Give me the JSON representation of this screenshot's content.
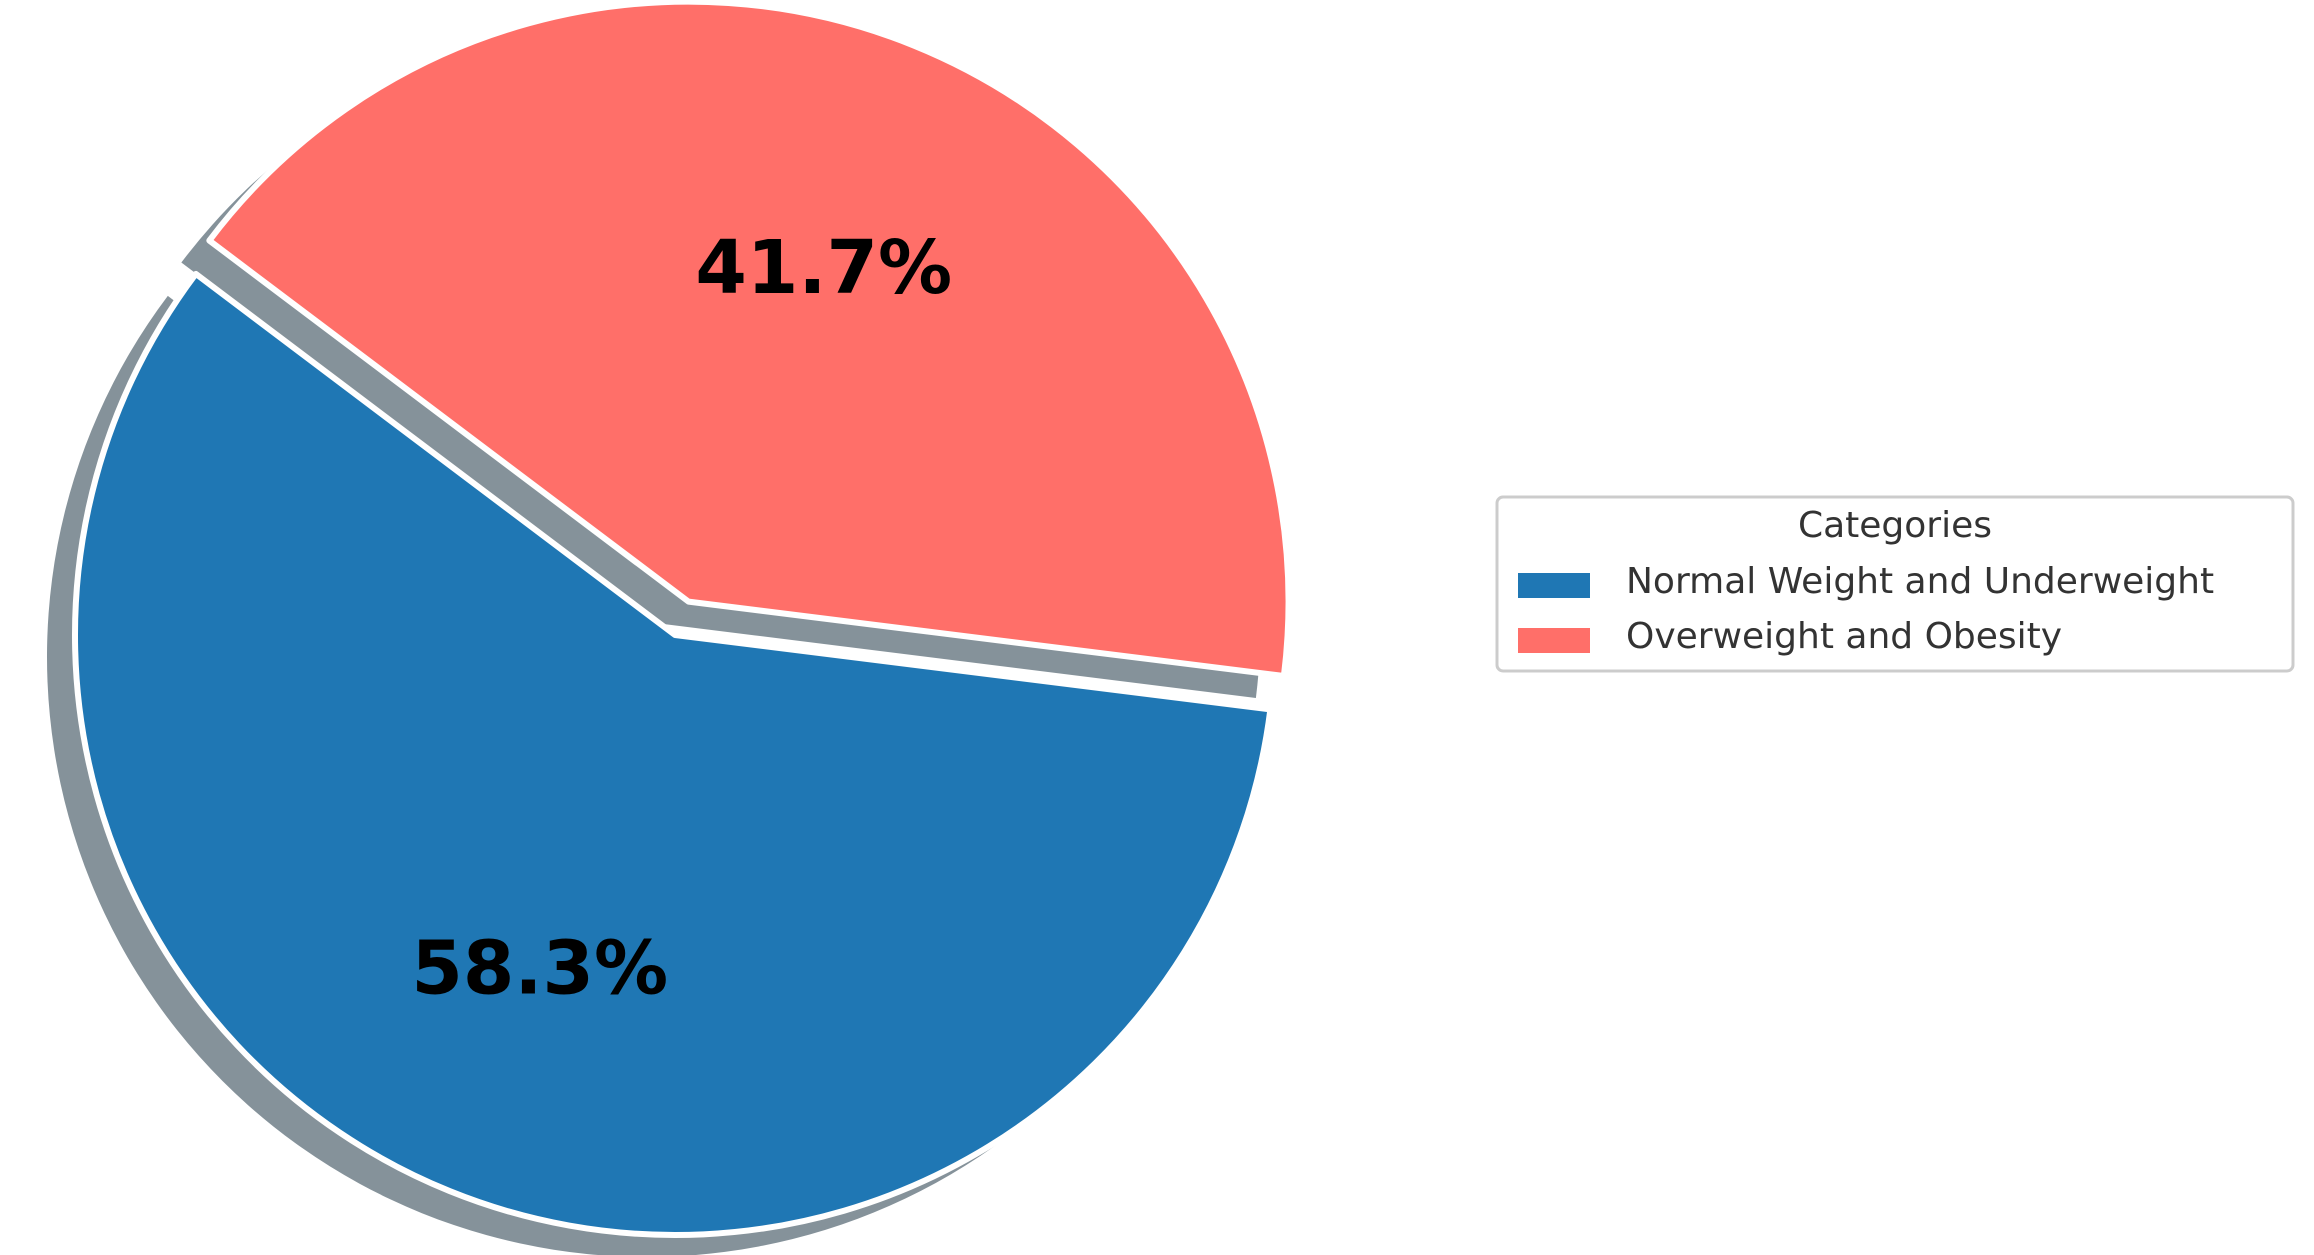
{
  "chart_data": {
    "type": "pie",
    "title": "",
    "start_angle_deg": 143,
    "direction": "counterclockwise",
    "shadow": true,
    "exploded": [
      "Overweight and Obesity"
    ],
    "slices": [
      {
        "label": "Normal Weight and Underweight",
        "value": 58.3,
        "display": "58.3%",
        "color": "#1f77b4"
      },
      {
        "label": "Overweight and Obesity",
        "value": 41.7,
        "display": "41.7%",
        "color": "#ff6f69"
      }
    ],
    "legend": {
      "title": "Categories",
      "placement": "right",
      "entries": [
        "Normal Weight and Underweight",
        "Overweight and Obesity"
      ]
    }
  }
}
